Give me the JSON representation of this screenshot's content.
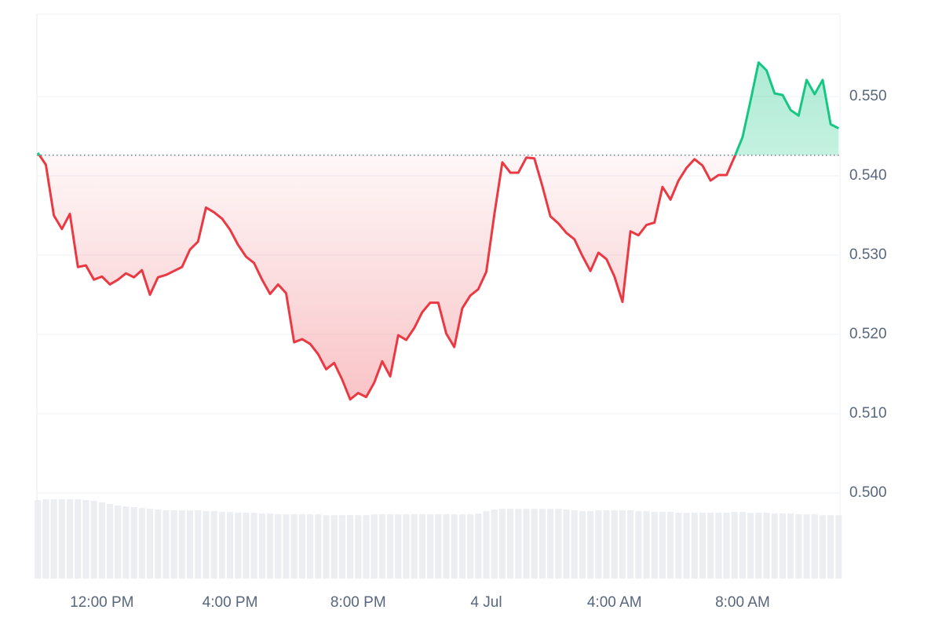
{
  "chart_data": {
    "type": "baseline-line",
    "x": [
      10,
      10.25,
      10.5,
      10.75,
      11,
      11.25,
      11.5,
      11.75,
      12,
      12.25,
      12.5,
      12.75,
      13,
      13.25,
      13.5,
      13.75,
      14,
      14.25,
      14.5,
      14.75,
      15,
      15.25,
      15.5,
      15.75,
      16,
      16.25,
      16.5,
      16.75,
      17,
      17.25,
      17.5,
      17.75,
      18,
      18.25,
      18.5,
      18.75,
      19,
      19.25,
      19.5,
      19.75,
      20,
      20.25,
      20.5,
      20.75,
      21,
      21.25,
      21.5,
      21.75,
      22,
      22.25,
      22.5,
      22.75,
      23,
      23.25,
      23.5,
      23.75,
      24,
      24.25,
      24.5,
      24.75,
      25,
      25.25,
      25.5,
      25.75,
      26,
      26.25,
      26.5,
      26.75,
      27,
      27.25,
      27.5,
      27.75,
      28,
      28.25,
      28.5,
      28.75,
      29,
      29.25,
      29.5,
      29.75,
      30,
      30.25,
      30.5,
      30.75,
      31,
      31.25,
      31.5,
      31.75,
      32,
      32.25,
      32.5,
      32.75,
      33,
      33.25,
      33.5,
      33.75,
      34,
      34.25,
      34.5,
      34.75,
      35
    ],
    "values": [
      0.5429,
      0.5414,
      0.535,
      0.5333,
      0.5352,
      0.5285,
      0.5287,
      0.5269,
      0.5273,
      0.5263,
      0.5269,
      0.5277,
      0.5272,
      0.5281,
      0.525,
      0.5272,
      0.5275,
      0.528,
      0.5285,
      0.5307,
      0.5317,
      0.536,
      0.5354,
      0.5346,
      0.5332,
      0.5313,
      0.5298,
      0.529,
      0.5269,
      0.5251,
      0.5263,
      0.5252,
      0.519,
      0.5194,
      0.5188,
      0.5175,
      0.5156,
      0.5164,
      0.5143,
      0.5118,
      0.5126,
      0.5121,
      0.5139,
      0.5166,
      0.5147,
      0.5199,
      0.5193,
      0.5208,
      0.5228,
      0.524,
      0.524,
      0.5201,
      0.5184,
      0.5233,
      0.5249,
      0.5257,
      0.5279,
      0.5351,
      0.5417,
      0.5404,
      0.5404,
      0.5423,
      0.5422,
      0.5387,
      0.5349,
      0.534,
      0.5328,
      0.532,
      0.5299,
      0.528,
      0.5303,
      0.5295,
      0.5273,
      0.5241,
      0.533,
      0.5325,
      0.5338,
      0.5341,
      0.5386,
      0.537,
      0.5394,
      0.541,
      0.5421,
      0.5413,
      0.5394,
      0.5401,
      0.5401,
      0.5424,
      0.5449,
      0.5495,
      0.5543,
      0.5533,
      0.5504,
      0.5502,
      0.5483,
      0.5476,
      0.5521,
      0.5503,
      0.5521,
      0.5465,
      0.546
    ],
    "baseline": 0.5426,
    "up_color": "#16c784",
    "down_color": "#ea3943",
    "volume": {
      "values": [
        99,
        100,
        100,
        100,
        100,
        100,
        99,
        98,
        96,
        94,
        92,
        91,
        90,
        89,
        88,
        87,
        86,
        86,
        86,
        86,
        86,
        85,
        85,
        84,
        84,
        83,
        83,
        83,
        82,
        82,
        81,
        81,
        81,
        81,
        81,
        81,
        80,
        80,
        80,
        80,
        80,
        80,
        81,
        81,
        81,
        81,
        81,
        81,
        81,
        81,
        81,
        81,
        81,
        81,
        81,
        82,
        85,
        87,
        88,
        88,
        88,
        88,
        88,
        88,
        88,
        88,
        87,
        86,
        85,
        85,
        86,
        86,
        86,
        86,
        86,
        85,
        85,
        84,
        84,
        84,
        83,
        83,
        83,
        83,
        83,
        83,
        83,
        84,
        84,
        83,
        83,
        83,
        82,
        82,
        82,
        81,
        81,
        81,
        80,
        80,
        80
      ],
      "ylim": [
        0,
        100
      ],
      "color": "#eceef1"
    },
    "xlim": [
      9.97,
      35.04
    ],
    "ylim": [
      0.4892,
      0.5604
    ],
    "xticks": [
      {
        "value": 12,
        "label": "12:00 PM"
      },
      {
        "value": 16,
        "label": "4:00 PM"
      },
      {
        "value": 20,
        "label": "8:00 PM"
      },
      {
        "value": 24,
        "label": "4 Jul"
      },
      {
        "value": 28,
        "label": "4:00 AM"
      },
      {
        "value": 32,
        "label": "8:00 AM"
      }
    ],
    "yticks": [
      {
        "value": 0.5,
        "label": "0.500"
      },
      {
        "value": 0.51,
        "label": "0.510"
      },
      {
        "value": 0.52,
        "label": "0.520"
      },
      {
        "value": 0.53,
        "label": "0.530"
      },
      {
        "value": 0.54,
        "label": "0.540"
      },
      {
        "value": 0.55,
        "label": "0.550"
      }
    ],
    "grid": true
  }
}
